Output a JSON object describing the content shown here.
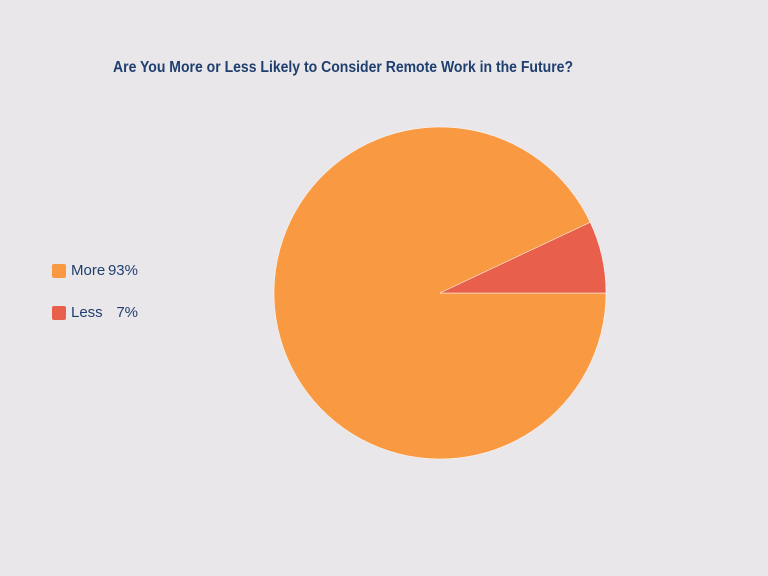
{
  "chart_data": {
    "type": "pie",
    "title": "Are You More or Less Likely to Consider Remote Work in the Future?",
    "categories": [
      "More",
      "Less"
    ],
    "values": [
      93,
      7
    ],
    "value_labels": [
      "93%",
      "7%"
    ],
    "colors": [
      "#F99A43",
      "#E8604C"
    ],
    "legend": "left"
  }
}
